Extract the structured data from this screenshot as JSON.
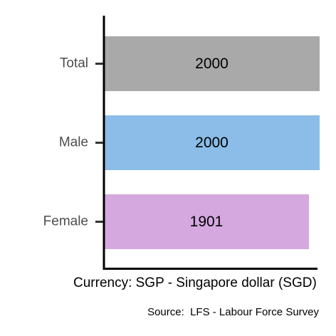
{
  "chart_data": {
    "type": "bar",
    "orientation": "horizontal",
    "categories": [
      "Total",
      "Male",
      "Female"
    ],
    "values": [
      2000,
      2000,
      1901
    ],
    "colors": [
      "#a9a9a9",
      "#8bbde8",
      "#d5a8e0"
    ],
    "xlim": [
      0,
      2000
    ],
    "x_label": "Currency: SGP - Singapore dollar (SGD)",
    "caption": "Source:  LFS - Labour Force Survey"
  }
}
